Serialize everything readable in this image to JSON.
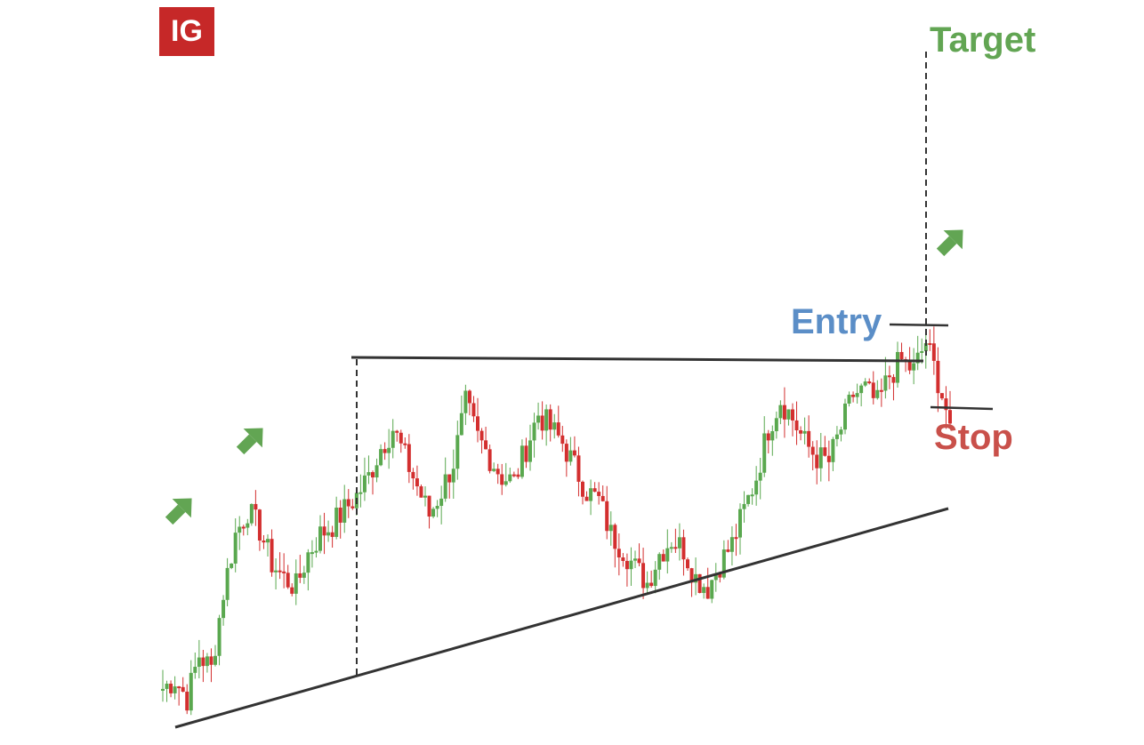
{
  "logo": {
    "text": "IG",
    "color": "#c62828"
  },
  "labels": {
    "target": "Target",
    "entry": "Entry",
    "stop": "Stop"
  },
  "colors": {
    "bull": "#5aa84f",
    "bear": "#d32f2f",
    "target": "#62a553",
    "entry": "#5b8ec7",
    "stop": "#c9504a",
    "arrow": "#62a553",
    "line": "#333333"
  },
  "icons": [
    "up-right-arrow-icon",
    "up-right-arrow-icon",
    "up-right-arrow-icon"
  ],
  "chart_data": {
    "type": "candlestick",
    "pattern": "ascending triangle breakout",
    "series": [
      {
        "name": "",
        "closes": [
          38,
          40,
          36,
          45,
          42,
          58,
          70,
          75,
          71,
          64,
          61,
          59,
          66,
          70,
          72,
          75,
          78,
          82,
          88,
          92,
          86,
          80,
          74,
          79,
          85,
          97,
          90,
          86,
          82,
          81,
          88,
          95,
          92,
          89,
          84,
          79,
          77,
          70,
          67,
          63,
          60,
          66,
          69,
          67,
          61,
          59,
          64,
          68,
          75,
          82,
          92,
          98,
          94,
          89,
          86,
          85,
          92,
          99,
          100,
          97,
          103,
          106,
          104,
          110,
          102,
          93
        ]
      }
    ],
    "ylim": [
      30,
      120
    ],
    "annotations": [
      "Target",
      "Entry",
      "Stop"
    ],
    "grid": false
  }
}
